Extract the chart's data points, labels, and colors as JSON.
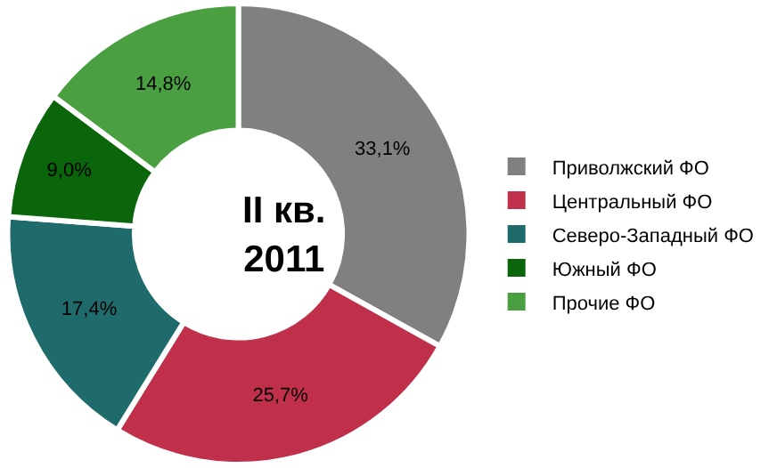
{
  "chart_data": {
    "type": "donut",
    "title": "II кв.\n2011",
    "categories": [
      "Приволжский ФО",
      "Центральный ФО",
      "Северо-Западный ФО",
      "Южный ФО",
      "Прочие ФО"
    ],
    "values": [
      33.1,
      25.7,
      17.4,
      9.0,
      14.8
    ],
    "value_labels": [
      "33,1%",
      "25,7%",
      "17,4%",
      "9,0%",
      "14,8%"
    ],
    "colors": [
      "#808080",
      "#c0304a",
      "#1f6b6b",
      "#0b650b",
      "#4aa040"
    ],
    "legend": "right"
  }
}
